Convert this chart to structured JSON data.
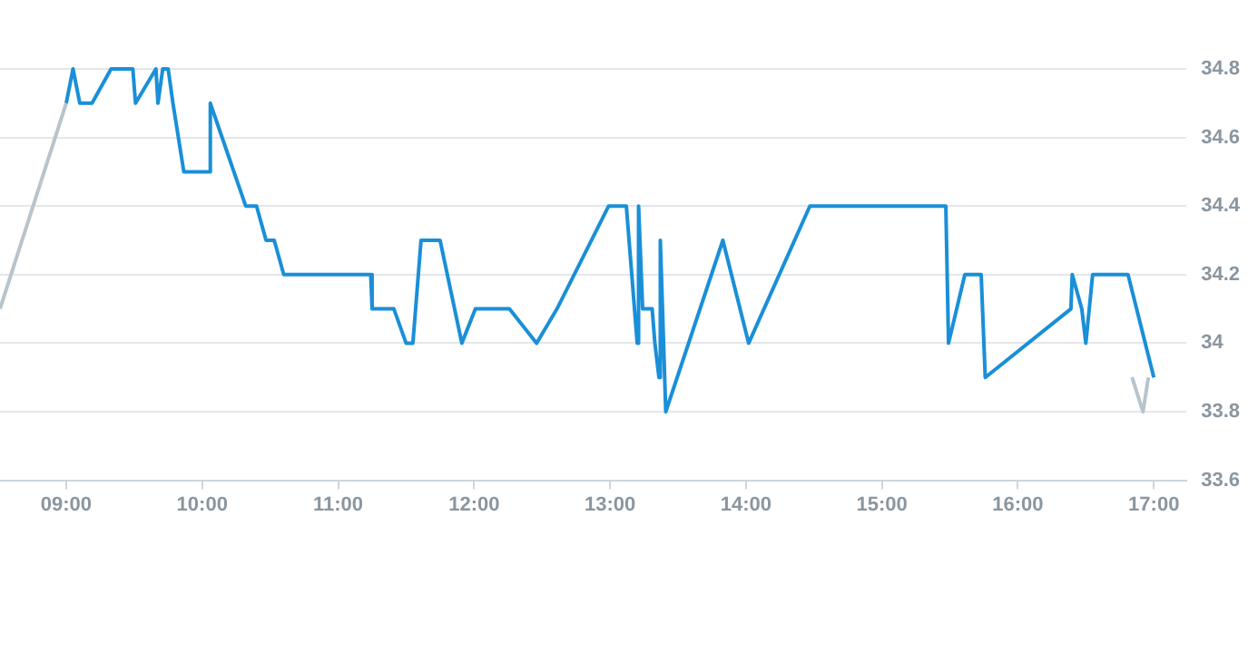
{
  "chart_data": {
    "type": "line",
    "xlim": [
      8.513,
      17.24
    ],
    "ylim": [
      33.6,
      34.8
    ],
    "xticks": [
      {
        "value": 9,
        "label": "09:00"
      },
      {
        "value": 10,
        "label": "10:00"
      },
      {
        "value": 11,
        "label": "11:00"
      },
      {
        "value": 12,
        "label": "12:00"
      },
      {
        "value": 13,
        "label": "13:00"
      },
      {
        "value": 14,
        "label": "14:00"
      },
      {
        "value": 15,
        "label": "15:00"
      },
      {
        "value": 16,
        "label": "16:00"
      },
      {
        "value": 17,
        "label": "17:00"
      }
    ],
    "yticks": [
      33.6,
      33.8,
      34,
      34.2,
      34.4,
      34.6,
      34.8
    ],
    "grid": "y",
    "legend": false,
    "marker": "none",
    "line_style": "solid",
    "series": [
      {
        "color": "#b8c4cc",
        "x": [
          8.513,
          9.0,
          12.0,
          16.84,
          16.92,
          16.96
        ],
        "values": [
          34.1,
          34.7,
          null,
          33.9,
          33.8,
          33.9
        ]
      },
      {
        "color": "#1a8fd8",
        "x": [
          9.0,
          9.05,
          9.1,
          9.19,
          9.33,
          9.49,
          9.51,
          9.66,
          9.675,
          9.71,
          9.75,
          9.785,
          9.865,
          10.055,
          10.06,
          10.32,
          10.4,
          10.47,
          10.53,
          10.6,
          11.24,
          11.25,
          11.41,
          11.5,
          11.55,
          11.61,
          11.75,
          11.91,
          12.01,
          12.26,
          12.46,
          12.61,
          12.99,
          13.12,
          13.2,
          13.21,
          13.24,
          13.31,
          13.33,
          13.36,
          13.37,
          13.41,
          13.83,
          14.02,
          14.47,
          15.47,
          15.49,
          15.61,
          15.73,
          15.76,
          16.39,
          16.4,
          16.47,
          16.5,
          16.55,
          16.81,
          17.0
        ],
        "values": [
          34.7,
          34.8,
          34.7,
          34.7,
          34.8,
          34.8,
          34.7,
          34.8,
          34.7,
          34.8,
          34.8,
          34.7,
          34.5,
          34.5,
          34.7,
          34.4,
          34.4,
          34.3,
          34.3,
          34.2,
          34.2,
          34.1,
          34.1,
          34.0,
          34.0,
          34.3,
          34.3,
          34.0,
          34.1,
          34.1,
          34.0,
          34.1,
          34.4,
          34.4,
          34.0,
          34.4,
          34.1,
          34.1,
          34.0,
          33.9,
          34.3,
          33.8,
          34.3,
          34.0,
          34.4,
          34.4,
          34.0,
          34.2,
          34.2,
          33.9,
          34.1,
          34.2,
          34.1,
          34.0,
          34.2,
          34.2,
          33.9
        ]
      }
    ]
  }
}
